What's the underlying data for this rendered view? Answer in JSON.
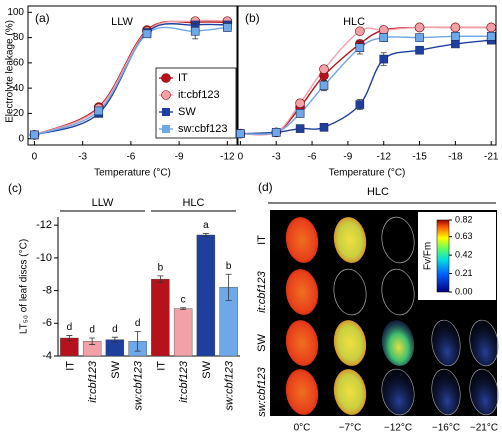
{
  "chart_data": [
    {
      "type": "line",
      "panel_label": "(a)",
      "title": "LLW",
      "xlabel": "Temperature (°C)",
      "ylabel": "Electrolyte leakage (%)",
      "x": [
        0,
        -4,
        -7,
        -10,
        -12
      ],
      "xlim": [
        0.4,
        -12.6
      ],
      "xticks": [
        0,
        -3,
        -6,
        -9,
        -12
      ],
      "ylim": [
        -5,
        105
      ],
      "yticks": [
        0,
        20,
        40,
        60,
        80,
        100
      ],
      "legend": "lower right",
      "series": [
        {
          "name": "IT",
          "color": "#b5121b",
          "marker": "circle",
          "values": [
            3,
            25,
            86,
            92,
            92
          ],
          "errors": [
            0.5,
            2,
            2,
            2,
            1.5
          ]
        },
        {
          "name": "it:cbf123",
          "color": "#f4a0a8",
          "marker": "circle",
          "values": [
            3,
            24,
            85,
            93,
            93
          ],
          "errors": [
            0.5,
            2,
            2,
            1.5,
            1.5
          ]
        },
        {
          "name": "SW",
          "color": "#1f3f9f",
          "marker": "square",
          "values": [
            3,
            20,
            84,
            90,
            90
          ],
          "errors": [
            0.5,
            2,
            2,
            2,
            2
          ]
        },
        {
          "name": "sw:cbf123",
          "color": "#6fa8e8",
          "marker": "square",
          "values": [
            3,
            22,
            83,
            85,
            88
          ],
          "errors": [
            0.5,
            2,
            3,
            6,
            3
          ]
        }
      ]
    },
    {
      "type": "line",
      "panel_label": "(b)",
      "title": "HLC",
      "xlabel": "Temperature (°C)",
      "x": [
        0,
        -3,
        -5,
        -7,
        -10,
        -12,
        -15,
        -18,
        -21
      ],
      "xlim": [
        0.2,
        -21.4
      ],
      "xticks": [
        0,
        -3,
        -6,
        -9,
        -12,
        -15,
        -18,
        -21
      ],
      "ylim": [
        -5,
        105
      ],
      "series": [
        {
          "color": "#b5121b",
          "marker": "circle",
          "values": [
            4,
            5,
            25,
            50,
            75,
            86,
            88,
            88,
            88
          ],
          "errors": [
            0.5,
            0.5,
            3,
            4,
            3,
            2,
            2,
            2,
            2
          ]
        },
        {
          "color": "#f4a0a8",
          "marker": "circle",
          "values": [
            4,
            5,
            28,
            55,
            85,
            86,
            88,
            88,
            88
          ],
          "errors": [
            0.5,
            0.5,
            3,
            3,
            2,
            2,
            2,
            2,
            2
          ]
        },
        {
          "color": "#1f3f9f",
          "marker": "square",
          "values": [
            4,
            5,
            8,
            9,
            27,
            63,
            70,
            75,
            78
          ],
          "errors": [
            0.5,
            0.5,
            1,
            1.5,
            4,
            5,
            2,
            2,
            2
          ]
        },
        {
          "color": "#6fa8e8",
          "marker": "square",
          "values": [
            4,
            5,
            20,
            42,
            72,
            80,
            80,
            81,
            81
          ],
          "errors": [
            0.5,
            0.5,
            3,
            4,
            5,
            3,
            2,
            2,
            2
          ]
        }
      ]
    },
    {
      "type": "bar",
      "panel_label": "(c)",
      "ylabel": "LT₅₀ of leaf discs (°C)",
      "groups": [
        "LLW",
        "HLC"
      ],
      "categories": [
        "IT",
        "it:cbf123",
        "SW",
        "sw:cbf123",
        "IT",
        "it:cbf123",
        "SW",
        "sw:cbf123"
      ],
      "colors": [
        "#b5121b",
        "#f4a0a8",
        "#1f3f9f",
        "#6fa8e8",
        "#b5121b",
        "#f4a0a8",
        "#1f3f9f",
        "#6fa8e8"
      ],
      "values": [
        -5.1,
        -4.9,
        -5.0,
        -4.9,
        -8.7,
        -6.9,
        -11.4,
        -8.2
      ],
      "errors": [
        0.15,
        0.2,
        0.15,
        0.6,
        0.2,
        0.05,
        0.1,
        0.8
      ],
      "annotations": [
        "d",
        "d",
        "d",
        "d",
        "b",
        "c",
        "a",
        "b"
      ],
      "ylim": [
        -4,
        -12.5
      ],
      "yticks": [
        -4,
        -6,
        -8,
        -10,
        -12
      ]
    },
    {
      "type": "image",
      "panel_label": "(d)",
      "title": "HLC",
      "rows": [
        "IT",
        "it:cbf123",
        "SW",
        "sw:cbf123"
      ],
      "columns": [
        "0°C",
        "−7°C",
        "−12°C",
        "−16°C",
        "−21°C"
      ],
      "colorbar": {
        "label": "Fv/Fm",
        "lim": [
          0,
          0.82
        ],
        "ticks": [
          {
            "value": 0,
            "label": "0.00"
          },
          0.21,
          0.42,
          0.63,
          0.82
        ]
      }
    }
  ]
}
